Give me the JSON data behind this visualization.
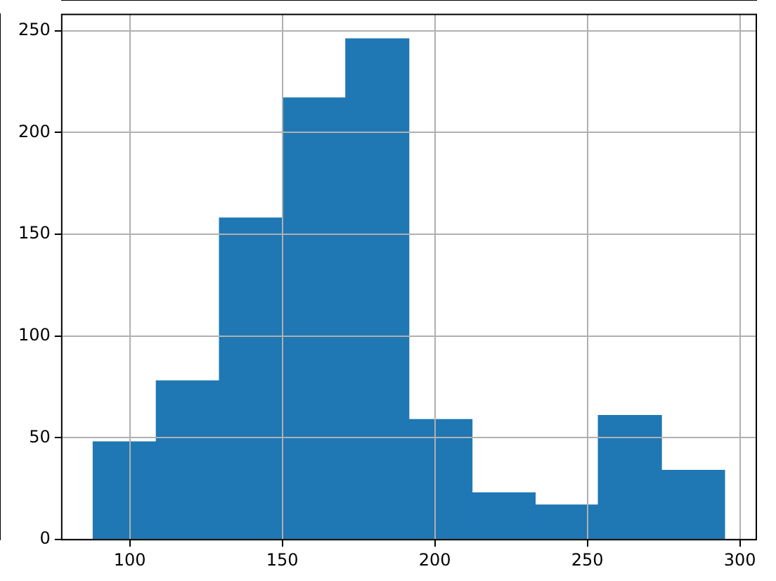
{
  "chart_data": {
    "type": "histogram",
    "bins": [
      88,
      108.7,
      129.4,
      150.1,
      170.8,
      191.5,
      212.2,
      232.9,
      253.6,
      274.3,
      295
    ],
    "values": [
      48,
      78,
      158,
      217,
      246,
      59,
      23,
      17,
      61,
      34
    ],
    "color": "#1f77b4",
    "xlim": [
      77.7,
      305.4
    ],
    "xticks": [
      100,
      150,
      200,
      250,
      300
    ],
    "ylim": [
      0,
      258
    ],
    "yticks": [
      0,
      50,
      100,
      150,
      200,
      250
    ],
    "grid": true
  }
}
